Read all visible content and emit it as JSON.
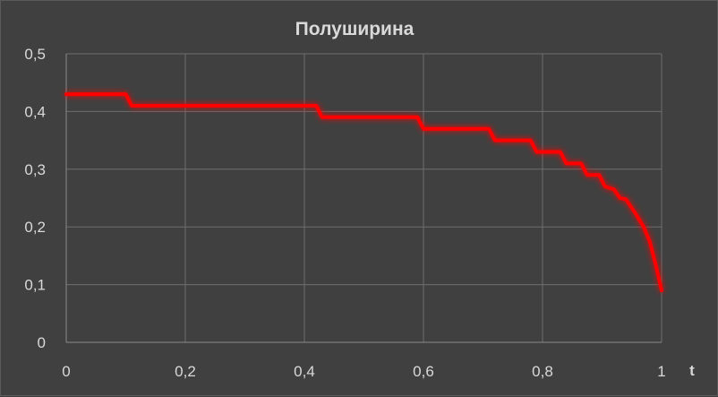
{
  "chart_data": {
    "type": "line",
    "title": "Полуширина",
    "xlabel": "t",
    "ylabel": "",
    "xlim": [
      0,
      1
    ],
    "ylim": [
      0,
      0.5
    ],
    "x_ticks": [
      "0",
      "0,2",
      "0,4",
      "0,6",
      "0,8",
      "1"
    ],
    "y_ticks": [
      "0",
      "0,1",
      "0,2",
      "0,3",
      "0,4",
      "0,5"
    ],
    "grid": true,
    "legend": "none",
    "series": [
      {
        "color": "#ff0000",
        "points": [
          [
            0,
            0.43
          ],
          [
            0.1,
            0.43
          ],
          [
            0.11,
            0.41
          ],
          [
            0.42,
            0.41
          ],
          [
            0.43,
            0.39
          ],
          [
            0.59,
            0.39
          ],
          [
            0.6,
            0.37
          ],
          [
            0.71,
            0.37
          ],
          [
            0.72,
            0.35
          ],
          [
            0.78,
            0.35
          ],
          [
            0.79,
            0.33
          ],
          [
            0.83,
            0.33
          ],
          [
            0.84,
            0.31
          ],
          [
            0.865,
            0.31
          ],
          [
            0.875,
            0.29
          ],
          [
            0.895,
            0.29
          ],
          [
            0.905,
            0.27
          ],
          [
            0.92,
            0.265
          ],
          [
            0.93,
            0.25
          ],
          [
            0.94,
            0.248
          ],
          [
            0.955,
            0.225
          ],
          [
            0.97,
            0.2
          ],
          [
            0.98,
            0.175
          ],
          [
            0.99,
            0.135
          ],
          [
            1,
            0.09
          ]
        ]
      }
    ]
  }
}
